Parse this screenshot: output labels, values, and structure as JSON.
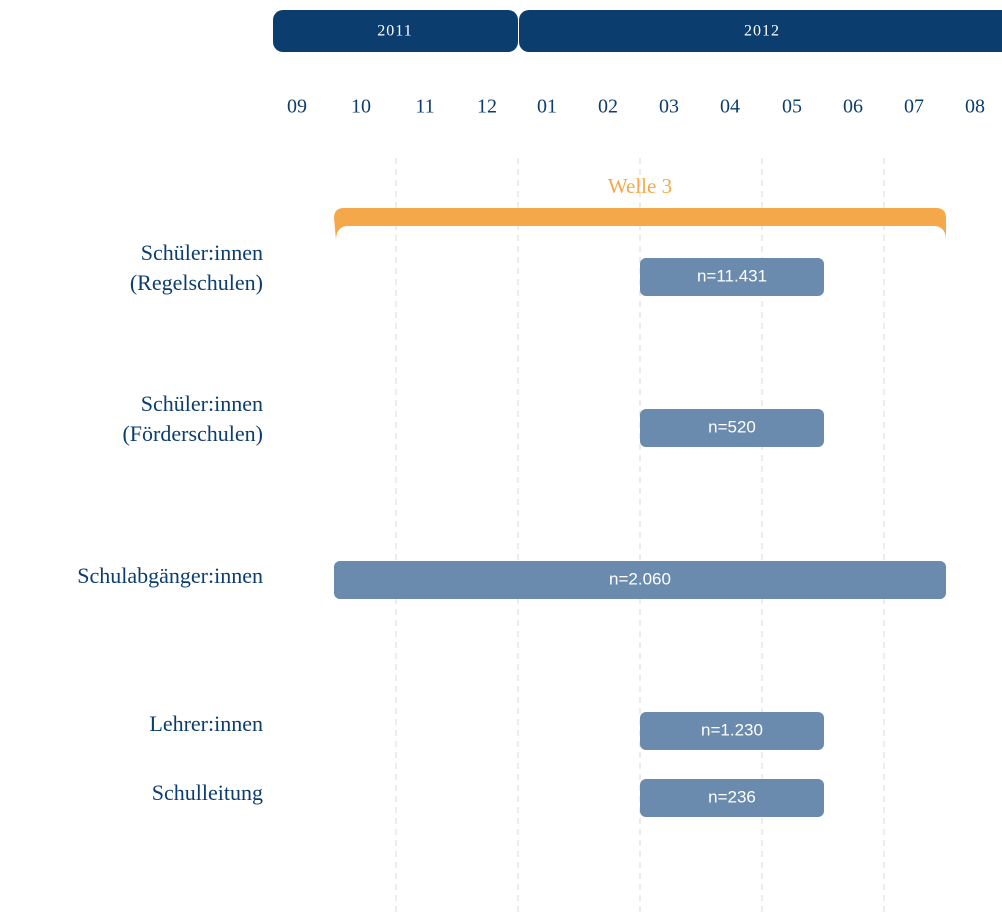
{
  "years": [
    "2011",
    "2012"
  ],
  "months": [
    "09",
    "10",
    "11",
    "12",
    "01",
    "02",
    "03",
    "04",
    "05",
    "06",
    "07",
    "08"
  ],
  "wave": "Welle 3",
  "rows": [
    {
      "label": [
        "Schüler:innen",
        "(Regelschulen)"
      ],
      "bar": "n=11.431"
    },
    {
      "label": [
        "Schüler:innen",
        "(Förderschulen)"
      ],
      "bar": "n=520"
    },
    {
      "label": [
        "Schulabgänger:innen"
      ],
      "bar": "n=2.060"
    },
    {
      "label": [
        "Lehrer:innen"
      ],
      "bar": "n=1.230"
    },
    {
      "label": [
        "Schulleitung"
      ],
      "bar": "n=236"
    }
  ]
}
